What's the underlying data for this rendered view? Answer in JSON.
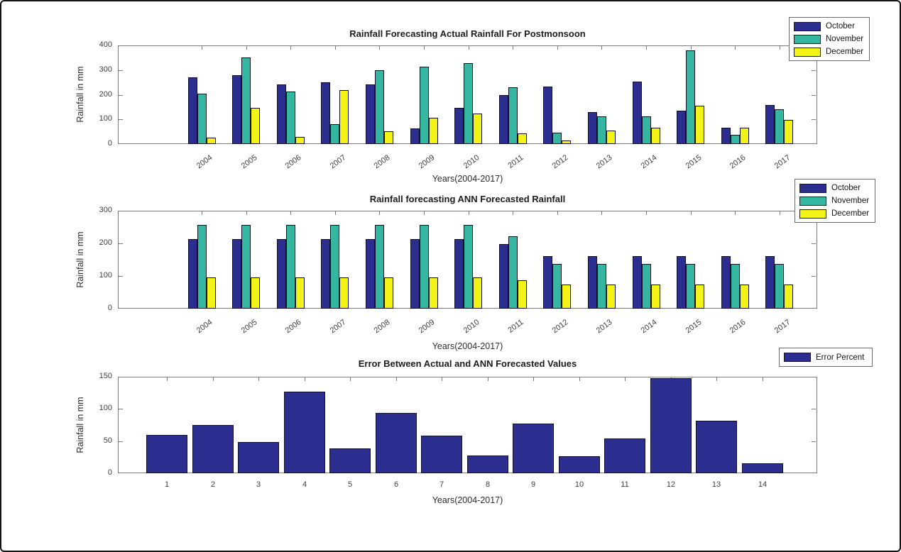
{
  "figure": {
    "background": "#ffffff",
    "border_color": "#141414"
  },
  "colors": {
    "october": "#2B2D8F",
    "november": "#34B6A1",
    "december": "#F3F318",
    "error": "#2B2D8F",
    "axis": "#7a7a7a",
    "text": "#2b2b2b",
    "bar_edge": "#101028"
  },
  "chart_data": [
    {
      "type": "bar",
      "title": "Rainfall Forecasting Actual Rainfall For Postmonsoon",
      "xlabel": "Years(2004-2017)",
      "ylabel": "Rainfall in mm",
      "ylim": [
        0,
        400
      ],
      "yticks": [
        0,
        100,
        200,
        300,
        400
      ],
      "grid": false,
      "xtick_rotation": -36,
      "legend_position": "top-right-outside",
      "categories": [
        "2004",
        "2005",
        "2006",
        "2007",
        "2008",
        "2009",
        "2010",
        "2011",
        "2012",
        "2013",
        "2014",
        "2015",
        "2016",
        "2017"
      ],
      "series": [
        {
          "name": "October",
          "color_key": "october",
          "values": [
            271,
            280,
            241,
            249,
            243,
            64,
            146,
            199,
            234,
            130,
            252,
            135,
            66,
            157
          ]
        },
        {
          "name": "November",
          "color_key": "november",
          "values": [
            205,
            352,
            214,
            80,
            298,
            315,
            329,
            230,
            46,
            113,
            112,
            380,
            36,
            141
          ]
        },
        {
          "name": "December",
          "color_key": "december",
          "values": [
            26,
            148,
            28,
            220,
            51,
            106,
            124,
            42,
            15,
            55,
            66,
            154,
            67,
            97
          ]
        }
      ]
    },
    {
      "type": "bar",
      "title": "Rainfall forecasting ANN Forecasted Rainfall",
      "xlabel": "Years(2004-2017)",
      "ylabel": "Rainfall in mm",
      "ylim": [
        0,
        300
      ],
      "yticks": [
        0,
        100,
        200,
        300
      ],
      "grid": false,
      "xtick_rotation": -36,
      "legend_position": "top-right-outside",
      "categories": [
        "2004",
        "2005",
        "2006",
        "2007",
        "2008",
        "2009",
        "2010",
        "2011",
        "2012",
        "2013",
        "2014",
        "2015",
        "2016",
        "2017"
      ],
      "series": [
        {
          "name": "October",
          "color_key": "october",
          "values": [
            213,
            213,
            213,
            213,
            213,
            213,
            213,
            198,
            160,
            160,
            160,
            160,
            160,
            160
          ]
        },
        {
          "name": "November",
          "color_key": "november",
          "values": [
            256,
            256,
            256,
            256,
            256,
            256,
            256,
            221,
            136,
            136,
            136,
            136,
            136,
            136
          ]
        },
        {
          "name": "December",
          "color_key": "december",
          "values": [
            96,
            96,
            96,
            96,
            96,
            96,
            96,
            88,
            73,
            73,
            73,
            73,
            73,
            73
          ]
        }
      ]
    },
    {
      "type": "bar",
      "title": "Error Between Actual and ANN Forecasted Values",
      "xlabel": "Years(2004-2017)",
      "ylabel": "Rainfall in mm",
      "ylim": [
        0,
        150
      ],
      "yticks": [
        0,
        50,
        100,
        150
      ],
      "grid": false,
      "xtick_rotation": 0,
      "legend_position": "top-right-outside",
      "categories": [
        "1",
        "2",
        "3",
        "4",
        "5",
        "6",
        "7",
        "8",
        "9",
        "10",
        "11",
        "12",
        "13",
        "14"
      ],
      "series": [
        {
          "name": "Error Percent",
          "color_key": "error",
          "values": [
            60,
            75,
            49,
            127,
            39,
            94,
            58,
            28,
            77,
            27,
            54,
            148,
            82,
            15
          ]
        }
      ]
    }
  ]
}
